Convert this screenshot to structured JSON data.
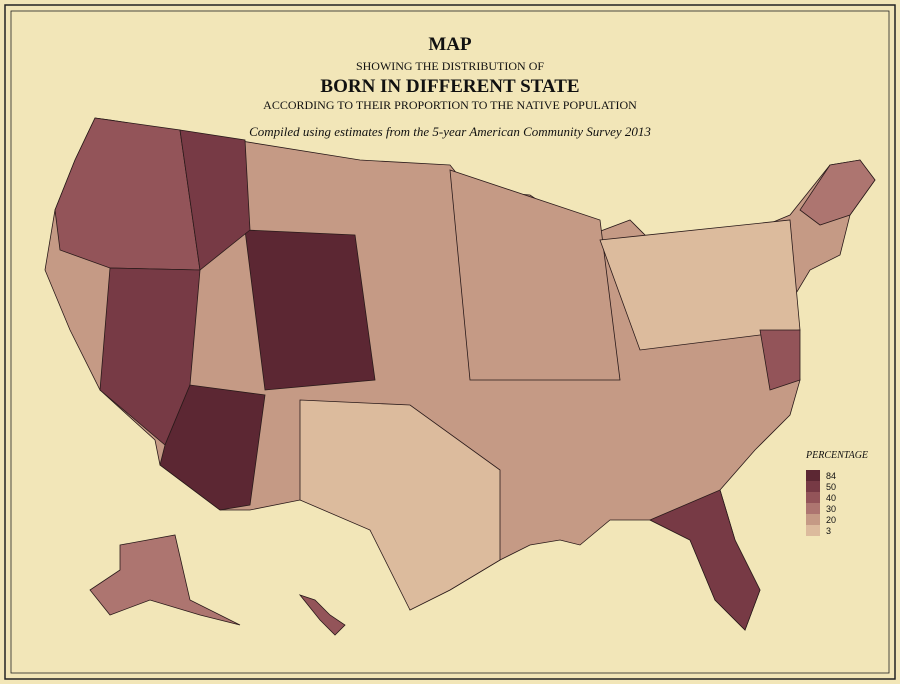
{
  "header": {
    "title": "MAP",
    "line2": "SHOWING THE DISTRIBUTION OF",
    "line3": "BORN IN DIFFERENT STATE",
    "line4": "ACCORDING TO THEIR PROPORTION TO THE NATIVE POPULATION",
    "subtitle": "Compiled using estimates from the 5-year American Community Survey 2013"
  },
  "legend": {
    "title": "PERCENTAGE",
    "items": [
      {
        "label": 84,
        "color": "#5c2733"
      },
      {
        "label": 50,
        "color": "#773a45"
      },
      {
        "label": 40,
        "color": "#935459"
      },
      {
        "label": 30,
        "color": "#ad7570"
      },
      {
        "label": 20,
        "color": "#c59a85"
      },
      {
        "label": 3,
        "color": "#dcbb9d"
      }
    ]
  }
}
